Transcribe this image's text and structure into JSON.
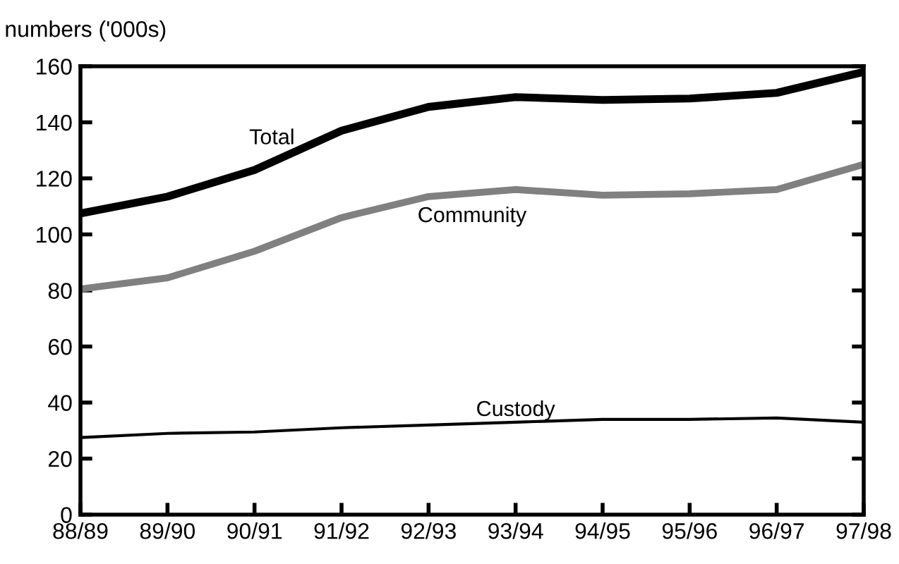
{
  "chart_data": {
    "type": "line",
    "ylabel": "numbers ('000s)",
    "categories": [
      "88/89",
      "89/90",
      "90/91",
      "91/92",
      "92/93",
      "93/94",
      "94/95",
      "95/96",
      "96/97",
      "97/98"
    ],
    "series": [
      {
        "name": "Total",
        "color": "#000000",
        "values": [
          107.5,
          113.5,
          123,
          137,
          145.5,
          149,
          148,
          148.5,
          150.5,
          158
        ]
      },
      {
        "name": "Community",
        "color": "#808080",
        "values": [
          80.5,
          84.5,
          94,
          106,
          113.5,
          116,
          114,
          114.5,
          116,
          125
        ]
      },
      {
        "name": "Custody",
        "color": "#000000",
        "values": [
          27.5,
          29,
          29.5,
          31,
          32,
          33,
          34,
          34,
          34.5,
          33
        ]
      }
    ],
    "ylim": [
      0,
      160
    ],
    "yticks": [
      0,
      20,
      40,
      60,
      80,
      100,
      120,
      140,
      160
    ],
    "grid": false,
    "legend": false,
    "marker": "none",
    "line_style": "solid"
  }
}
